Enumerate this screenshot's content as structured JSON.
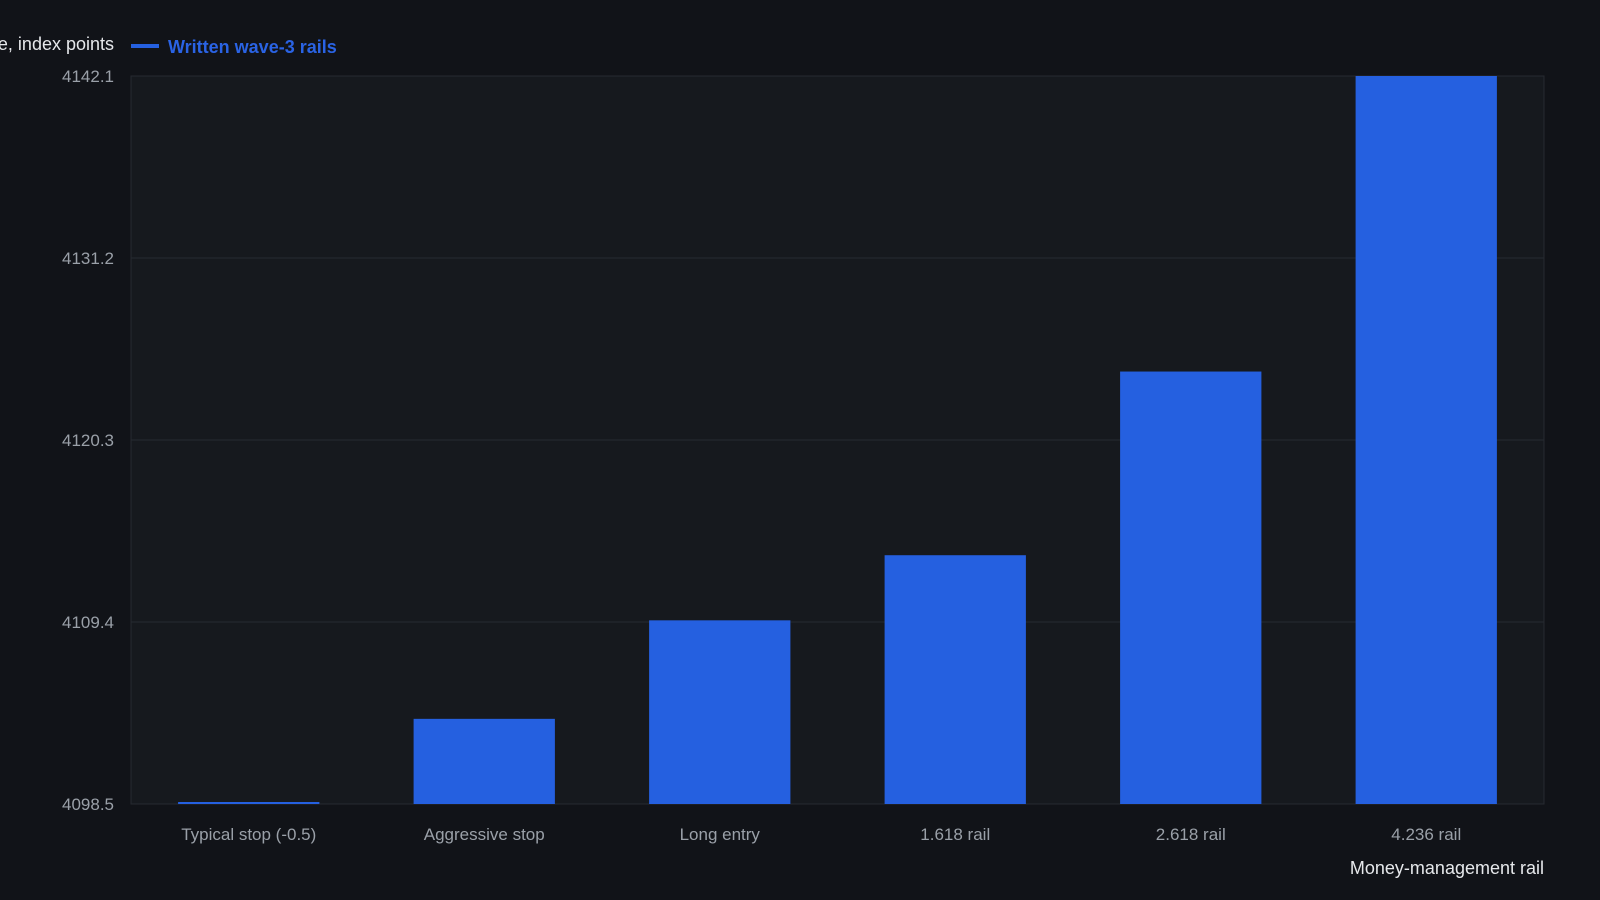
{
  "chart_data": {
    "type": "bar",
    "ylabel": "Price, index points",
    "xlabel": "Money-management rail",
    "categories": [
      "Typical stop (-0.5)",
      "Aggressive stop",
      "Long entry",
      "1.618 rail",
      "2.618 rail",
      "4.236 rail"
    ],
    "series": [
      {
        "name": "Written wave-3 rails",
        "values": [
          4098.5,
          4103.6,
          4109.5,
          4113.4,
          4124.4,
          4142.1
        ]
      }
    ],
    "y_ticks": [
      "4098.5",
      "4109.4",
      "4120.3",
      "4131.2",
      "4142.1"
    ],
    "ylim": [
      4098.5,
      4142.1
    ],
    "grid": true,
    "legend_position": "top-left",
    "colors": {
      "background": "#111318",
      "plot_background": "#16191e",
      "bar": "#2560e0",
      "legend_text": "#2a63e4",
      "grid": "#262a31",
      "tick_text": "#9aa0a8",
      "title_text": "#e6e8eb"
    }
  }
}
